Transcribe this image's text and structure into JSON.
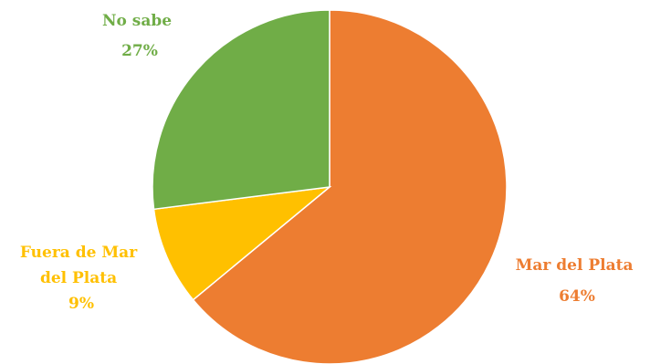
{
  "chart_data": {
    "type": "pie",
    "title": "",
    "slices": [
      {
        "label": "Mar del Plata",
        "label_lines": [
          "Mar del Plata"
        ],
        "value": 64,
        "value_label": "64%",
        "color": "#ED7D31"
      },
      {
        "label": "Fuera de Mar del Plata",
        "label_lines": [
          "Fuera de Mar",
          "del Plata"
        ],
        "value": 9,
        "value_label": "9%",
        "color": "#FFC000"
      },
      {
        "label": "No sabe",
        "label_lines": [
          "No sabe"
        ],
        "value": 27,
        "value_label": "27%",
        "color": "#70AD47"
      }
    ],
    "start_angle_deg": 0,
    "direction": "clockwise",
    "legend": "none",
    "data_labels": "outside"
  }
}
